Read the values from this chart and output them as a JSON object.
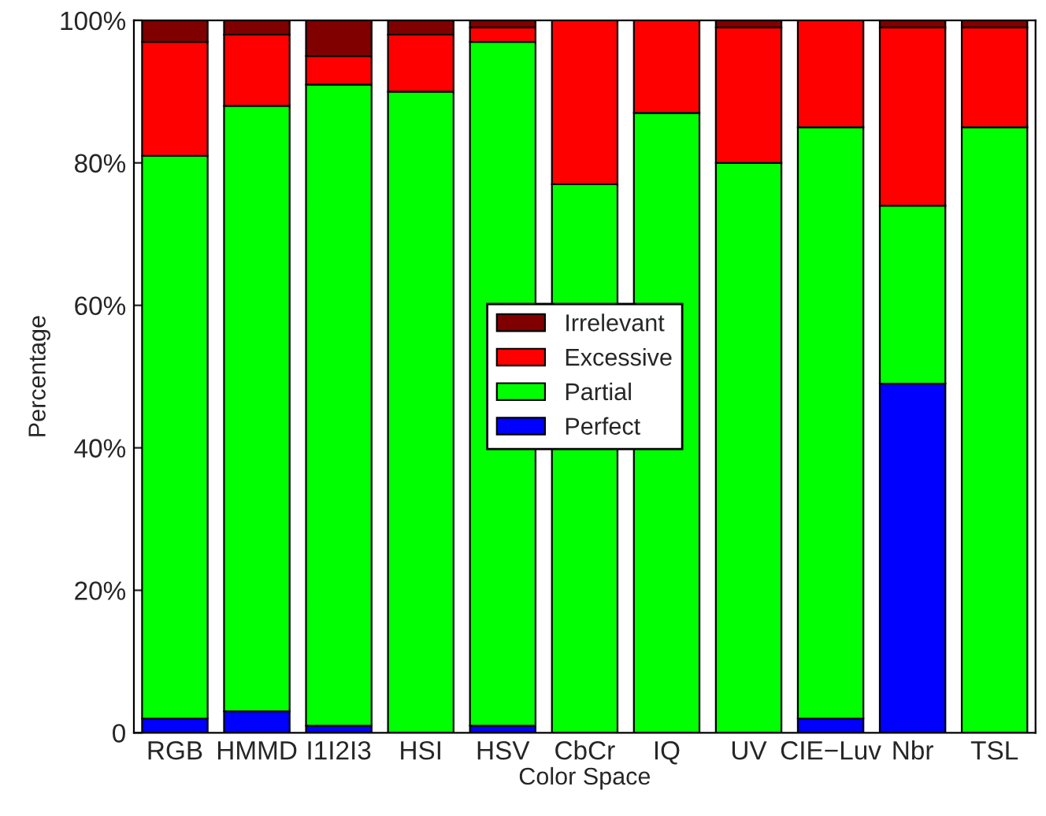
{
  "chart_data": {
    "type": "bar",
    "stacked": true,
    "xlabel": "Color Space",
    "ylabel": "Percentage",
    "categories": [
      "RGB",
      "HMMD",
      "I1I2I3",
      "HSI",
      "HSV",
      "CbCr",
      "IQ",
      "UV",
      "CIE−Luv",
      "Nbr",
      "TSL"
    ],
    "series": [
      {
        "name": "Perfect",
        "color": "#0000ff",
        "values": [
          2,
          3,
          1,
          0,
          1,
          0,
          0,
          0,
          2,
          49,
          0
        ]
      },
      {
        "name": "Partial",
        "color": "#00ff00",
        "values": [
          79,
          85,
          90,
          90,
          96,
          77,
          87,
          80,
          83,
          25,
          85
        ]
      },
      {
        "name": "Excessive",
        "color": "#ff0000",
        "values": [
          16,
          10,
          4,
          8,
          2,
          23,
          13,
          19,
          15,
          25,
          14
        ]
      },
      {
        "name": "Irrelevant",
        "color": "#800000",
        "values": [
          3,
          2,
          5,
          2,
          1,
          0,
          0,
          1,
          0,
          1,
          1
        ]
      }
    ],
    "ylim": [
      0,
      100
    ],
    "yticks": [
      {
        "value": 0,
        "label": "0"
      },
      {
        "value": 20,
        "label": "20%"
      },
      {
        "value": 40,
        "label": "40%"
      },
      {
        "value": 60,
        "label": "60%"
      },
      {
        "value": 80,
        "label": "80%"
      },
      {
        "value": 100,
        "label": "100%"
      }
    ],
    "grid": false,
    "legend": "center"
  }
}
